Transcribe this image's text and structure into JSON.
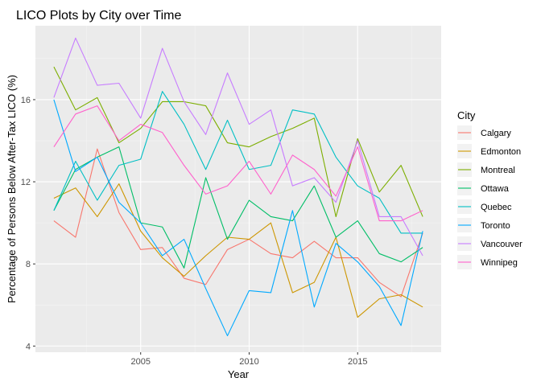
{
  "chart_data": {
    "type": "line",
    "title": "LICO Plots by City over Time",
    "xlabel": "Year",
    "ylabel": "Percentage of Persons Below After-Tax LICO (%)",
    "x": [
      2001,
      2002,
      2003,
      2004,
      2005,
      2006,
      2007,
      2008,
      2009,
      2010,
      2011,
      2012,
      2013,
      2014,
      2015,
      2016,
      2017,
      2018
    ],
    "xlim": [
      2000.15,
      2018.85
    ],
    "ylim": [
      3.7,
      19.6
    ],
    "xticks": [
      2005,
      2010,
      2015
    ],
    "xtick_labels": [
      "2005",
      "2010",
      "2015"
    ],
    "yticks": [
      4,
      8,
      12,
      16
    ],
    "ytick_labels": [
      "4",
      "8",
      "12",
      "16"
    ],
    "grid": true,
    "legend_position": "right",
    "legend_title": "City",
    "series": [
      {
        "name": "Calgary",
        "color": "#F8766D",
        "values": [
          10.1,
          9.3,
          13.6,
          10.5,
          8.7,
          8.8,
          7.3,
          7.0,
          8.7,
          9.2,
          8.5,
          8.3,
          9.1,
          8.3,
          8.3,
          7.1,
          6.4,
          9.5
        ]
      },
      {
        "name": "Edmonton",
        "color": "#CD9600",
        "values": [
          11.2,
          11.7,
          10.3,
          11.9,
          9.6,
          8.3,
          7.4,
          8.4,
          9.3,
          9.2,
          10.0,
          6.6,
          7.1,
          9.3,
          5.4,
          6.3,
          6.5,
          5.9
        ]
      },
      {
        "name": "Montreal",
        "color": "#7CAE00",
        "values": [
          17.6,
          15.5,
          16.1,
          13.9,
          14.6,
          15.9,
          15.9,
          15.7,
          13.9,
          13.7,
          14.2,
          14.6,
          15.1,
          10.3,
          14.1,
          11.5,
          12.8,
          10.3
        ]
      },
      {
        "name": "Ottawa",
        "color": "#00BE67",
        "values": [
          10.6,
          12.6,
          13.2,
          13.7,
          10.0,
          9.8,
          7.8,
          12.2,
          9.2,
          11.1,
          10.3,
          10.1,
          11.8,
          9.3,
          10.1,
          8.5,
          8.1,
          8.8
        ]
      },
      {
        "name": "Quebec",
        "color": "#00BFC4",
        "values": [
          10.6,
          13.0,
          11.1,
          12.8,
          13.1,
          16.4,
          14.8,
          12.6,
          15.0,
          12.6,
          12.8,
          15.5,
          15.3,
          13.2,
          11.8,
          11.2,
          9.5,
          9.5
        ]
      },
      {
        "name": "Toronto",
        "color": "#00A9FF",
        "values": [
          16.0,
          12.5,
          13.2,
          11.0,
          10.0,
          8.4,
          9.2,
          6.8,
          4.5,
          6.7,
          6.6,
          10.6,
          5.9,
          9.0,
          8.1,
          6.9,
          5.0,
          9.6
        ]
      },
      {
        "name": "Vancouver",
        "color": "#C77CFF",
        "values": [
          16.1,
          19.0,
          16.7,
          16.8,
          15.1,
          18.5,
          15.9,
          14.3,
          17.3,
          14.8,
          15.5,
          11.8,
          12.2,
          11.0,
          14.0,
          10.3,
          10.3,
          8.4
        ]
      },
      {
        "name": "Winnipeg",
        "color": "#FF61CC",
        "values": [
          13.7,
          15.3,
          15.7,
          14.0,
          14.8,
          14.4,
          12.8,
          11.4,
          11.8,
          13.0,
          11.4,
          13.3,
          12.6,
          11.3,
          13.7,
          10.1,
          10.1,
          10.6
        ]
      }
    ]
  }
}
